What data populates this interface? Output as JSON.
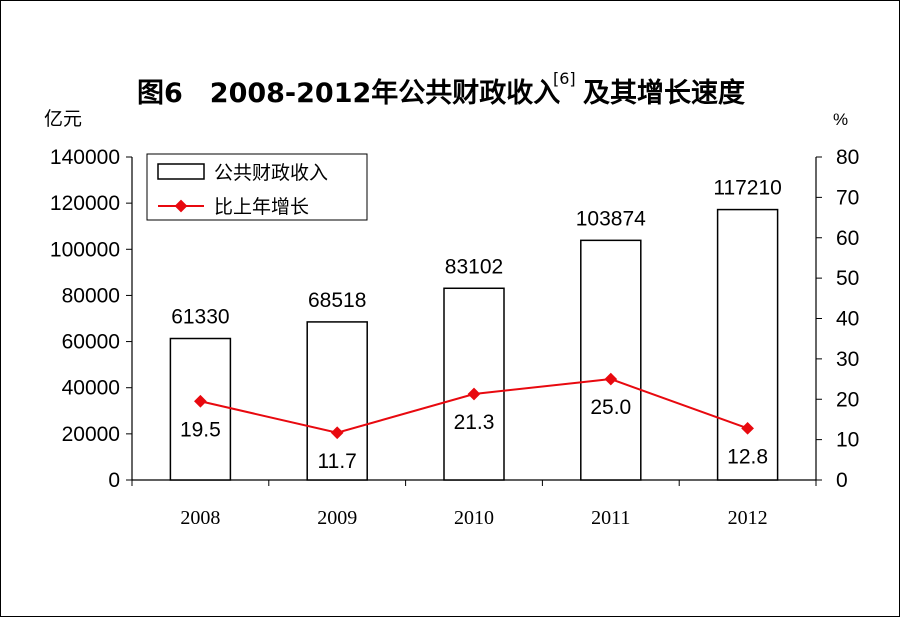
{
  "chart_data": {
    "type": "bar",
    "title": "图6　2008-2012年公共财政收入",
    "title_superscript": "[6]",
    "title_suffix": "及其增长速度",
    "ylabel_left": "亿元",
    "ylabel_right": "%",
    "categories": [
      "2008",
      "2009",
      "2010",
      "2011",
      "2012"
    ],
    "ylim_left": [
      0,
      140000
    ],
    "ylim_right": [
      0,
      80
    ],
    "yticks_left": [
      "0",
      "20000",
      "40000",
      "60000",
      "80000",
      "100000",
      "120000",
      "140000"
    ],
    "yticks_right": [
      "0",
      "10",
      "20",
      "30",
      "40",
      "50",
      "60",
      "70",
      "80"
    ],
    "series": [
      {
        "name": "公共财政收入",
        "type": "bar",
        "axis": "left",
        "values": [
          61330,
          68518,
          83102,
          103874,
          117210
        ],
        "labels": [
          "61330",
          "68518",
          "83102",
          "103874",
          "117210"
        ]
      },
      {
        "name": "比上年增长",
        "type": "line",
        "axis": "right",
        "values": [
          19.5,
          11.7,
          21.3,
          25.0,
          12.8
        ],
        "labels": [
          "19.5",
          "11.7",
          "21.3",
          "25.0",
          "12.8"
        ]
      }
    ],
    "legend_position": "top-left",
    "grid": false
  },
  "colors": {
    "bar_fill": "#ffffff",
    "bar_stroke": "#000000",
    "line": "#e8090f",
    "marker": "#e8090f",
    "axis": "#000000"
  }
}
